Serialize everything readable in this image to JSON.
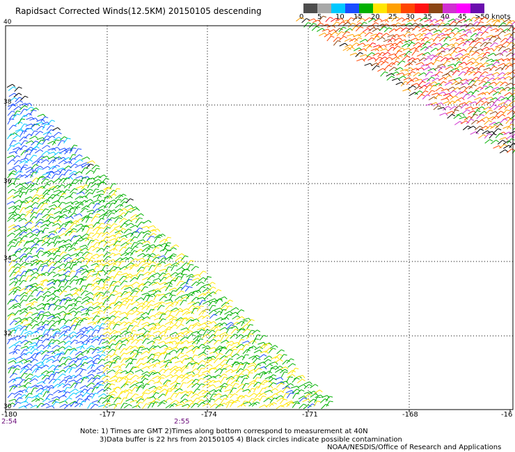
{
  "title": "Rapidsact Corrected Winds(12.5KM) 20150105 descending",
  "scale": {
    "labels": [
      "0",
      "5",
      "10",
      "15",
      "20",
      "25",
      "30",
      "35",
      "40",
      "45",
      ">50 knots"
    ],
    "colors": [
      "#4d4d4d",
      "#a8a8a8",
      "#00c8ff",
      "#1a4cff",
      "#00b000",
      "#ffe600",
      "#ffa000",
      "#ff4500",
      "#ff1010",
      "#8b4513",
      "#d030d0",
      "#ff00ff",
      "#6a0dad"
    ]
  },
  "axes": {
    "lon_labels": [
      "-180",
      "-177",
      "-174",
      "-171",
      "-168",
      "-16"
    ],
    "lat_labels": [
      "40",
      "38",
      "36",
      "34",
      "32",
      "30"
    ],
    "time_labels": [
      "2:54",
      "2:55"
    ]
  },
  "notes": {
    "line1": "Note: 1) Times are GMT 2)Times along bottom correspond to measurement at 40N",
    "line2": "3)Data buffer is 22 hrs from 20150105 4) Black circles indicate possible contamination"
  },
  "credit": "NOAA/NESDIS/Office of Research and Applications"
}
